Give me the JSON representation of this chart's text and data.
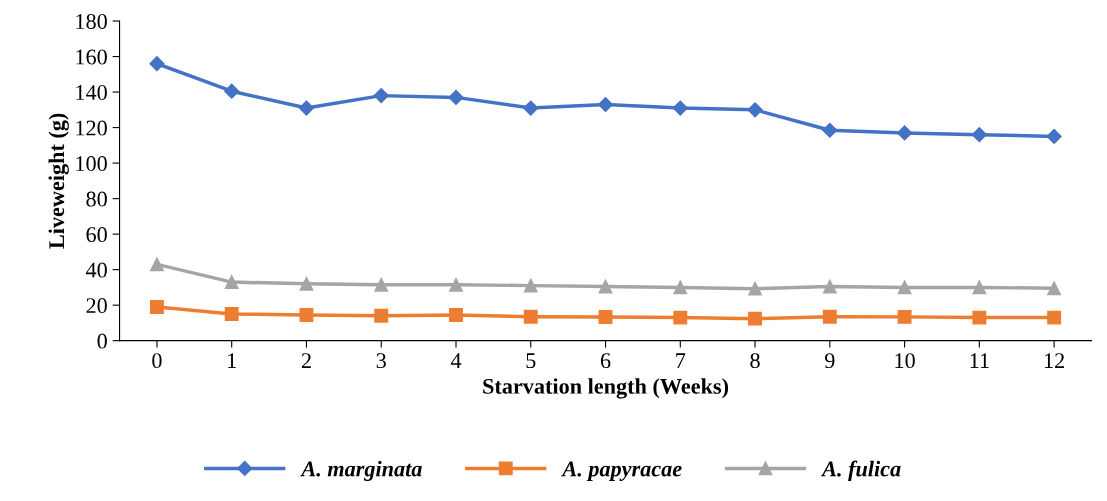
{
  "chart_data": {
    "type": "line",
    "xlabel": "Starvation length (Weeks)",
    "ylabel": "Liveweight (g)",
    "categories": [
      "0",
      "1",
      "2",
      "3",
      "4",
      "5",
      "6",
      "7",
      "8",
      "9",
      "10",
      "11",
      "12"
    ],
    "ylim": [
      0,
      180
    ],
    "yticks": [
      0,
      20,
      40,
      60,
      80,
      100,
      120,
      140,
      160,
      180
    ],
    "grid": false,
    "legend": "bottom",
    "series": [
      {
        "name": "A. marginata",
        "color": "#4472c4",
        "marker": "diamond",
        "values": [
          156,
          140.5,
          131,
          138,
          137,
          131,
          133,
          131,
          130,
          118.5,
          117,
          116,
          115
        ]
      },
      {
        "name": "A. papyracae",
        "color": "#ed7d31",
        "marker": "square",
        "values": [
          19,
          15,
          14.5,
          14,
          14.5,
          13.5,
          13.3,
          13,
          12.4,
          13.5,
          13.4,
          13,
          13
        ]
      },
      {
        "name": "A. fulica",
        "color": "#a5a5a5",
        "marker": "triangle",
        "values": [
          43,
          33,
          32,
          31.5,
          31.5,
          31,
          30.5,
          30,
          29.3,
          30.5,
          30,
          30,
          29.5
        ]
      }
    ]
  }
}
